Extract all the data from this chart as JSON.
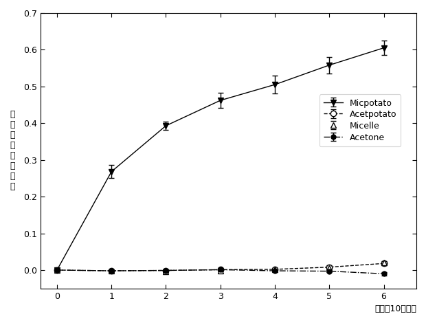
{
  "x": [
    0,
    1,
    2,
    3,
    4,
    5,
    6
  ],
  "micpotato_y": [
    0.0,
    0.268,
    0.393,
    0.462,
    0.505,
    0.558,
    0.605
  ],
  "micpotato_yerr": [
    0.005,
    0.018,
    0.012,
    0.02,
    0.025,
    0.022,
    0.02
  ],
  "acetpotato_y": [
    0.0,
    -0.002,
    -0.001,
    0.001,
    0.002,
    0.008,
    0.018
  ],
  "acetpotato_yerr": [
    0.002,
    0.002,
    0.002,
    0.002,
    0.003,
    0.005,
    0.005
  ],
  "micelle_y": [
    0.0,
    -0.001,
    -0.003,
    -0.001,
    0.001,
    0.005,
    0.02
  ],
  "micelle_yerr": [
    0.002,
    0.002,
    0.002,
    0.002,
    0.003,
    0.004,
    0.005
  ],
  "acetone_y": [
    0.0,
    -0.002,
    -0.001,
    0.001,
    -0.002,
    -0.003,
    -0.01
  ],
  "acetone_yerr": [
    0.002,
    0.002,
    0.002,
    0.002,
    0.002,
    0.003,
    0.005
  ],
  "xlabel": "时间（10分钟）",
  "ylabel_chars": [
    "活",
    "性",
    "氧",
    "的",
    "相",
    "对",
    "产",
    "率"
  ],
  "ylim": [
    -0.05,
    0.7
  ],
  "yticks": [
    0.0,
    0.1,
    0.2,
    0.3,
    0.4,
    0.5,
    0.6,
    0.7
  ],
  "xlim": [
    -0.3,
    6.6
  ],
  "xticks": [
    0,
    1,
    2,
    3,
    4,
    5,
    6
  ],
  "legend_labels": [
    "Micpotato",
    "Acetpotato",
    "Micelle",
    "Acetone"
  ]
}
